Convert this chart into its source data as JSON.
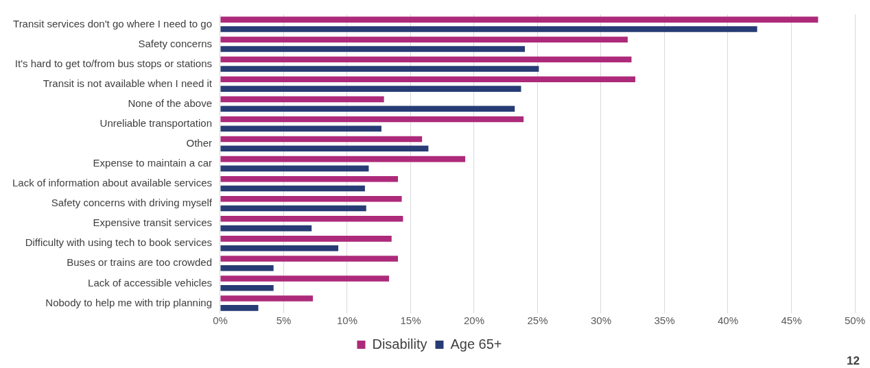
{
  "chart_data": {
    "type": "bar",
    "orientation": "horizontal",
    "categories": [
      "Transit services don't go where I need to go",
      "Safety concerns",
      "It's hard to get to/from bus stops or stations",
      "Transit is not available when I need it",
      "None of the above",
      "Unreliable transportation",
      "Other",
      "Expense to maintain a car",
      "Lack of information about available services",
      "Safety concerns with driving myself",
      "Expensive transit services",
      "Difficulty with using tech to book services",
      "Buses or trains are too crowded",
      "Lack of accessible vehicles",
      "Nobody to help me with trip planning"
    ],
    "series": [
      {
        "name": "Disability",
        "color": "#ad2a7a",
        "values": [
          47.1,
          32.1,
          32.4,
          32.7,
          12.9,
          23.9,
          15.9,
          19.3,
          14.0,
          14.3,
          14.4,
          13.5,
          14.0,
          13.3,
          7.3
        ]
      },
      {
        "name": "Age 65+",
        "color": "#273c75",
        "values": [
          42.3,
          24.0,
          25.1,
          23.7,
          23.2,
          12.7,
          16.4,
          11.7,
          11.4,
          11.5,
          7.2,
          9.3,
          4.2,
          4.2,
          3.0
        ]
      }
    ],
    "xlim": [
      0,
      50
    ],
    "xticks": [
      {
        "value": 0,
        "label": "0%"
      },
      {
        "value": 5,
        "label": "5%"
      },
      {
        "value": 10,
        "label": "10%"
      },
      {
        "value": 15,
        "label": "15%"
      },
      {
        "value": 20,
        "label": "20%"
      },
      {
        "value": 25,
        "label": "25%"
      },
      {
        "value": 30,
        "label": "30%"
      },
      {
        "value": 35,
        "label": "35%"
      },
      {
        "value": 40,
        "label": "40%"
      },
      {
        "value": 45,
        "label": "45%"
      },
      {
        "value": 50,
        "label": "50%"
      }
    ],
    "grid": "x",
    "legend": "bottom",
    "annotations": [
      "12"
    ]
  }
}
